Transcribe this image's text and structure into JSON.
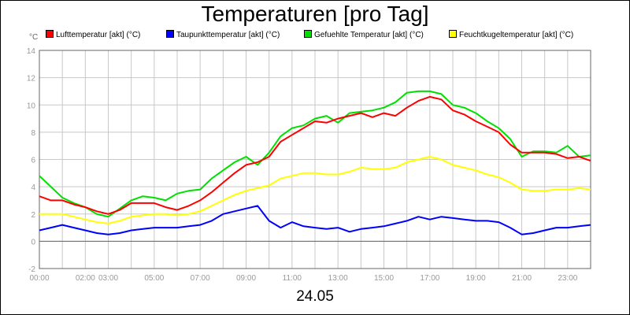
{
  "chart_data": {
    "type": "line",
    "title": "Temperaturen [pro Tag]",
    "xlabel": "24.05",
    "ylabel": "°C",
    "ylim": [
      -2,
      14
    ],
    "yticks": [
      -2,
      0,
      2,
      4,
      6,
      8,
      10,
      12,
      14
    ],
    "xlim": [
      0,
      24
    ],
    "xtick_labels": [
      "00:00",
      "02:00",
      "03:00",
      "05:00",
      "07:00",
      "09:00",
      "11:00",
      "13:00",
      "15:00",
      "17:00",
      "19:00",
      "21:00",
      "23:00"
    ],
    "xtick_positions": [
      0,
      2,
      3,
      5,
      7,
      9,
      11,
      13,
      15,
      17,
      19,
      21,
      23
    ],
    "grid": true,
    "legend_position": "top",
    "x": [
      0,
      0.5,
      1,
      1.5,
      2,
      2.5,
      3,
      3.5,
      4,
      4.5,
      5,
      5.5,
      6,
      6.5,
      7,
      7.5,
      8,
      8.5,
      9,
      9.5,
      10,
      10.5,
      11,
      11.5,
      12,
      12.5,
      13,
      13.5,
      14,
      14.5,
      15,
      15.5,
      16,
      16.5,
      17,
      17.5,
      18,
      18.5,
      19,
      19.5,
      20,
      20.5,
      21,
      21.5,
      22,
      22.5,
      23,
      23.5,
      24
    ],
    "series": [
      {
        "name": "Lufttemperatur [akt] (°C)",
        "color": "#ff0000",
        "values": [
          3.3,
          3.0,
          3.0,
          2.7,
          2.5,
          2.2,
          2.0,
          2.3,
          2.8,
          2.8,
          2.8,
          2.5,
          2.3,
          2.6,
          3.0,
          3.6,
          4.3,
          5.0,
          5.6,
          5.8,
          6.2,
          7.3,
          7.8,
          8.3,
          8.8,
          8.7,
          9.0,
          9.2,
          9.4,
          9.1,
          9.4,
          9.2,
          9.8,
          10.3,
          10.6,
          10.4,
          9.6,
          9.3,
          8.8,
          8.4,
          8.0,
          7.1,
          6.5,
          6.5,
          6.5,
          6.4,
          6.1,
          6.2,
          5.9
        ]
      },
      {
        "name": "Taupunkttemperatur [akt] (°C)",
        "color": "#0000ff",
        "values": [
          0.8,
          1.0,
          1.2,
          1.0,
          0.8,
          0.6,
          0.5,
          0.6,
          0.8,
          0.9,
          1.0,
          1.0,
          1.0,
          1.1,
          1.2,
          1.5,
          2.0,
          2.2,
          2.4,
          2.6,
          1.5,
          1.0,
          1.4,
          1.1,
          1.0,
          0.9,
          1.0,
          0.7,
          0.9,
          1.0,
          1.1,
          1.3,
          1.5,
          1.8,
          1.6,
          1.8,
          1.7,
          1.6,
          1.5,
          1.5,
          1.4,
          1.0,
          0.5,
          0.6,
          0.8,
          1.0,
          1.0,
          1.1,
          1.2
        ]
      },
      {
        "name": "Gefuehlte Temperatur [akt] (°C)",
        "color": "#00e000",
        "values": [
          4.8,
          4.0,
          3.2,
          2.8,
          2.5,
          2.0,
          1.8,
          2.4,
          3.0,
          3.3,
          3.2,
          3.0,
          3.5,
          3.7,
          3.8,
          4.6,
          5.2,
          5.8,
          6.2,
          5.6,
          6.5,
          7.7,
          8.3,
          8.5,
          9.0,
          9.2,
          8.7,
          9.4,
          9.5,
          9.6,
          9.8,
          10.2,
          10.9,
          11.0,
          11.0,
          10.8,
          10.0,
          9.8,
          9.4,
          8.8,
          8.3,
          7.5,
          6.2,
          6.6,
          6.6,
          6.5,
          7.0,
          6.2,
          6.3
        ]
      },
      {
        "name": "Feuchtkugeltemperatur [akt] (°C)",
        "color": "#ffff00",
        "values": [
          2.0,
          2.0,
          2.0,
          1.8,
          1.6,
          1.4,
          1.3,
          1.5,
          1.8,
          1.9,
          2.0,
          2.0,
          1.9,
          2.0,
          2.2,
          2.6,
          3.0,
          3.4,
          3.7,
          3.9,
          4.1,
          4.6,
          4.8,
          5.0,
          5.0,
          4.9,
          4.9,
          5.1,
          5.4,
          5.3,
          5.3,
          5.4,
          5.8,
          6.0,
          6.2,
          6.0,
          5.6,
          5.4,
          5.2,
          4.9,
          4.7,
          4.3,
          3.8,
          3.7,
          3.7,
          3.8,
          3.8,
          3.9,
          3.8
        ]
      }
    ]
  }
}
